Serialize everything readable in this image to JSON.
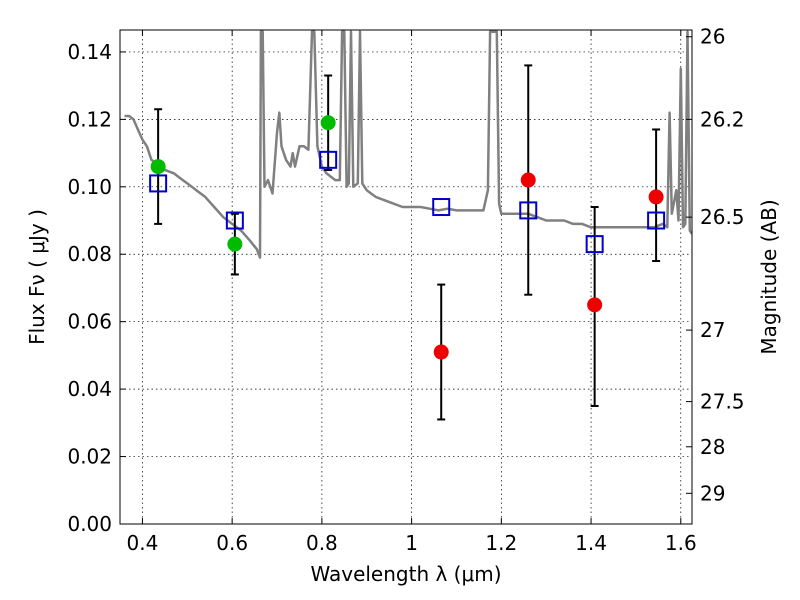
{
  "chart_data": {
    "type": "scatter",
    "xlabel": "Wavelength  λ (μm)",
    "ylabel": "Flux  Fν  ( μJy )",
    "ylabel_right": "Magnitude (AB)",
    "xlim": [
      0.35,
      1.625
    ],
    "ylim": [
      0.0,
      0.1465
    ],
    "grid": true,
    "x_ticks": [
      {
        "value": 0.4,
        "label": "0.4"
      },
      {
        "value": 0.6,
        "label": "0.6"
      },
      {
        "value": 0.8,
        "label": "0.8"
      },
      {
        "value": 1.0,
        "label": "1"
      },
      {
        "value": 1.2,
        "label": "1.2"
      },
      {
        "value": 1.4,
        "label": "1.4"
      },
      {
        "value": 1.6,
        "label": "1.6"
      }
    ],
    "y_ticks": [
      {
        "value": 0.0,
        "label": "0.00"
      },
      {
        "value": 0.02,
        "label": "0.02"
      },
      {
        "value": 0.04,
        "label": "0.04"
      },
      {
        "value": 0.06,
        "label": "0.06"
      },
      {
        "value": 0.08,
        "label": "0.08"
      },
      {
        "value": 0.1,
        "label": "0.10"
      },
      {
        "value": 0.12,
        "label": "0.12"
      },
      {
        "value": 0.14,
        "label": "0.14"
      }
    ],
    "right_ticks": [
      {
        "flux": 0.1445,
        "label": "26"
      },
      {
        "flux": 0.12,
        "label": "26.2"
      },
      {
        "flux": 0.091,
        "label": "26.5"
      },
      {
        "flux": 0.0575,
        "label": "27"
      },
      {
        "flux": 0.0363,
        "label": "27.5"
      },
      {
        "flux": 0.0229,
        "label": "28"
      },
      {
        "flux": 0.0091,
        "label": "29"
      }
    ],
    "series": [
      {
        "kind": "line",
        "color": "#808080",
        "points": [
          [
            0.36,
            0.121
          ],
          [
            0.37,
            0.121
          ],
          [
            0.38,
            0.12
          ],
          [
            0.39,
            0.117
          ],
          [
            0.4,
            0.114
          ],
          [
            0.41,
            0.112
          ],
          [
            0.42,
            0.108
          ],
          [
            0.43,
            0.107
          ],
          [
            0.44,
            0.106
          ],
          [
            0.45,
            0.105
          ],
          [
            0.47,
            0.104
          ],
          [
            0.48,
            0.103
          ],
          [
            0.49,
            0.102
          ],
          [
            0.5,
            0.101
          ],
          [
            0.52,
            0.099
          ],
          [
            0.54,
            0.097
          ],
          [
            0.56,
            0.094
          ],
          [
            0.58,
            0.091
          ],
          [
            0.6,
            0.089
          ],
          [
            0.62,
            0.087
          ],
          [
            0.64,
            0.084
          ],
          [
            0.655,
            0.0815
          ],
          [
            0.662,
            0.079
          ],
          [
            0.664,
            0.146
          ],
          [
            0.668,
            0.146
          ],
          [
            0.672,
            0.1
          ],
          [
            0.68,
            0.102
          ],
          [
            0.69,
            0.098
          ],
          [
            0.7,
            0.116
          ],
          [
            0.705,
            0.122
          ],
          [
            0.71,
            0.112
          ],
          [
            0.72,
            0.108
          ],
          [
            0.73,
            0.106
          ],
          [
            0.735,
            0.11
          ],
          [
            0.74,
            0.106
          ],
          [
            0.75,
            0.112
          ],
          [
            0.76,
            0.112
          ],
          [
            0.77,
            0.111
          ],
          [
            0.778,
            0.146
          ],
          [
            0.783,
            0.146
          ],
          [
            0.79,
            0.112
          ],
          [
            0.8,
            0.106
          ],
          [
            0.81,
            0.104
          ],
          [
            0.82,
            0.103
          ],
          [
            0.83,
            0.102
          ],
          [
            0.84,
            0.102
          ],
          [
            0.845,
            0.146
          ],
          [
            0.85,
            0.146
          ],
          [
            0.855,
            0.1
          ],
          [
            0.86,
            0.101
          ],
          [
            0.865,
            0.146
          ],
          [
            0.87,
            0.1
          ],
          [
            0.88,
            0.101
          ],
          [
            0.885,
            0.146
          ],
          [
            0.89,
            0.101
          ],
          [
            0.9,
            0.099
          ],
          [
            0.92,
            0.097
          ],
          [
            0.94,
            0.096
          ],
          [
            0.96,
            0.095
          ],
          [
            0.98,
            0.094
          ],
          [
            1.0,
            0.094
          ],
          [
            1.02,
            0.094
          ],
          [
            1.04,
            0.0935
          ],
          [
            1.06,
            0.093
          ],
          [
            1.08,
            0.0935
          ],
          [
            1.1,
            0.093
          ],
          [
            1.12,
            0.093
          ],
          [
            1.14,
            0.093
          ],
          [
            1.16,
            0.093
          ],
          [
            1.17,
            0.099
          ],
          [
            1.175,
            0.146
          ],
          [
            1.18,
            0.146
          ],
          [
            1.185,
            0.146
          ],
          [
            1.19,
            0.146
          ],
          [
            1.195,
            0.095
          ],
          [
            1.2,
            0.092
          ],
          [
            1.22,
            0.092
          ],
          [
            1.24,
            0.092
          ],
          [
            1.26,
            0.092
          ],
          [
            1.28,
            0.091
          ],
          [
            1.3,
            0.09
          ],
          [
            1.32,
            0.09
          ],
          [
            1.34,
            0.09
          ],
          [
            1.36,
            0.089
          ],
          [
            1.38,
            0.089
          ],
          [
            1.4,
            0.088
          ],
          [
            1.42,
            0.088
          ],
          [
            1.44,
            0.088
          ],
          [
            1.46,
            0.088
          ],
          [
            1.48,
            0.088
          ],
          [
            1.5,
            0.088
          ],
          [
            1.52,
            0.088
          ],
          [
            1.54,
            0.088
          ],
          [
            1.56,
            0.089
          ],
          [
            1.57,
            0.088
          ],
          [
            1.575,
            0.122
          ],
          [
            1.58,
            0.092
          ],
          [
            1.59,
            0.099
          ],
          [
            1.595,
            0.09
          ],
          [
            1.6,
            0.135
          ],
          [
            1.605,
            0.088
          ],
          [
            1.61,
            0.089
          ],
          [
            1.615,
            0.146
          ],
          [
            1.62,
            0.087
          ],
          [
            1.625,
            0.086
          ]
        ]
      },
      {
        "kind": "points",
        "marker": "circle",
        "color": "#00bb00",
        "points": [
          {
            "x": 0.435,
            "y": 0.106,
            "ylo": 0.089,
            "yhi": 0.123
          },
          {
            "x": 0.606,
            "y": 0.083,
            "ylo": 0.074,
            "yhi": 0.092
          },
          {
            "x": 0.814,
            "y": 0.119,
            "ylo": 0.105,
            "yhi": 0.133
          }
        ]
      },
      {
        "kind": "points",
        "marker": "circle",
        "color": "#ee0000",
        "points": [
          {
            "x": 1.066,
            "y": 0.051,
            "ylo": 0.031,
            "yhi": 0.071
          },
          {
            "x": 1.26,
            "y": 0.102,
            "ylo": 0.068,
            "yhi": 0.136
          },
          {
            "x": 1.408,
            "y": 0.065,
            "ylo": 0.035,
            "yhi": 0.094
          },
          {
            "x": 1.545,
            "y": 0.097,
            "ylo": 0.078,
            "yhi": 0.117
          }
        ]
      },
      {
        "kind": "points",
        "marker": "square",
        "color": "#0000cc",
        "points": [
          {
            "x": 0.435,
            "y": 0.101
          },
          {
            "x": 0.606,
            "y": 0.09
          },
          {
            "x": 0.814,
            "y": 0.108
          },
          {
            "x": 1.066,
            "y": 0.094
          },
          {
            "x": 1.26,
            "y": 0.093
          },
          {
            "x": 1.408,
            "y": 0.083
          },
          {
            "x": 1.545,
            "y": 0.09
          }
        ]
      }
    ]
  }
}
